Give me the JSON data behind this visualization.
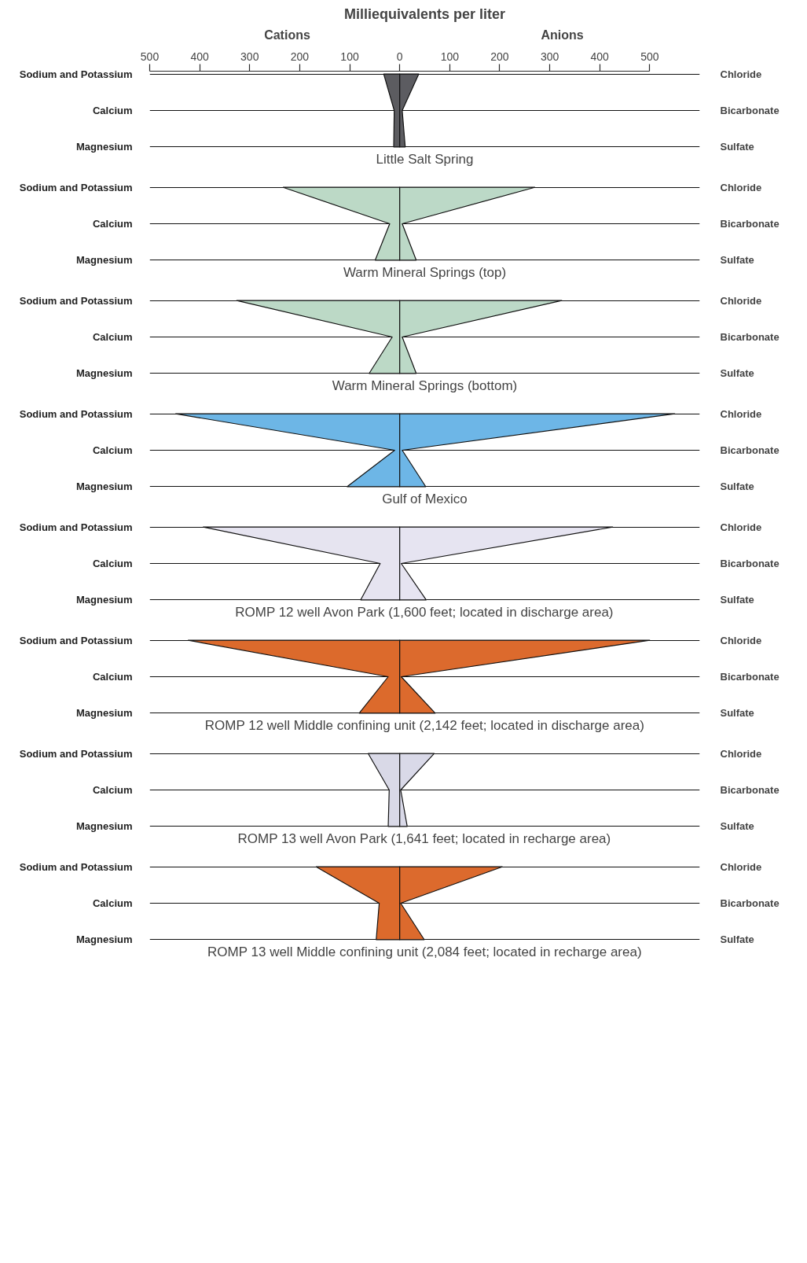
{
  "chart_data": [
    {
      "type": "area",
      "orientation": "horizontal",
      "title": "Milliequivalents per liter",
      "xlabel": "Little Salt Spring",
      "xlim": [
        -500,
        600
      ],
      "xticks": [
        {
          "value": -500,
          "label": "500"
        },
        {
          "value": -400,
          "label": "400"
        },
        {
          "value": -300,
          "label": "300"
        },
        {
          "value": -200,
          "label": "200"
        },
        {
          "value": -100,
          "label": "100"
        },
        0,
        100,
        200,
        300,
        400,
        500
      ],
      "grid": "y",
      "categories": [
        "Sodium and Potassium",
        "Calcium",
        "Magnesium"
      ],
      "y2_categories": [
        "Chloride",
        "Bicarbonate",
        "Sulfate"
      ],
      "annotations": [
        "Cations",
        "Anions"
      ],
      "series": [
        {
          "color": "#5c5c60",
          "values": [
            -32,
            -11,
            -12
          ]
        },
        {
          "color": "#5c5c61",
          "values": [
            38,
            5,
            11
          ]
        }
      ]
    },
    {
      "type": "area",
      "orientation": "horizontal",
      "xlabel": "Warm Mineral Springs (top)",
      "xlim": [
        -500,
        600
      ],
      "tick_labels": "y",
      "grid": "y",
      "categories": [
        "Sodium and Potassium",
        "Calcium",
        "Magnesium"
      ],
      "y2_categories": [
        "Chloride",
        "Bicarbonate",
        "Sulfate"
      ],
      "series": [
        {
          "color": "#bcd9c6",
          "values": [
            -233,
            -20,
            -49
          ]
        },
        {
          "color": "#bcd9c7",
          "values": [
            270,
            5,
            33
          ]
        }
      ]
    },
    {
      "type": "area",
      "orientation": "horizontal",
      "xlabel": "Warm Mineral Springs (bottom)",
      "xlim": [
        -500,
        600
      ],
      "tick_labels": "y",
      "grid": "y",
      "categories": [
        "Sodium and Potassium",
        "Calcium",
        "Magnesium"
      ],
      "y2_categories": [
        "Chloride",
        "Bicarbonate",
        "Sulfate"
      ],
      "series": [
        {
          "color": "#bcd9c6",
          "values": [
            -326,
            -15,
            -61
          ]
        },
        {
          "color": "#bcd9c7",
          "values": [
            324,
            5,
            33
          ]
        }
      ]
    },
    {
      "type": "area",
      "orientation": "horizontal",
      "xlabel": "Gulf of Mexico",
      "xlim": [
        -500,
        600
      ],
      "tick_labels": "y",
      "grid": "y",
      "categories": [
        "Sodium and Potassium",
        "Calcium",
        "Magnesium"
      ],
      "y2_categories": [
        "Chloride",
        "Bicarbonate",
        "Sulfate"
      ],
      "series": [
        {
          "color": "#6db6e6",
          "values": [
            -448,
            -10,
            -105
          ]
        },
        {
          "color": "#6db6e7",
          "values": [
            550,
            5,
            52
          ]
        }
      ]
    },
    {
      "type": "area",
      "orientation": "horizontal",
      "xlabel": "ROMP 12 well Avon Park (1,600 feet; located in discharge area)",
      "xlim": [
        -500,
        600
      ],
      "tick_labels": "y",
      "grid": "y",
      "categories": [
        "Sodium and Potassium",
        "Calcium",
        "Magnesium"
      ],
      "y2_categories": [
        "Chloride",
        "Bicarbonate",
        "Sulfate"
      ],
      "series": [
        {
          "color": "#e6e4f0",
          "values": [
            -393,
            -39,
            -78
          ]
        },
        {
          "color": "#e6e4f1",
          "values": [
            426,
            3,
            53
          ]
        }
      ]
    },
    {
      "type": "area",
      "orientation": "horizontal",
      "xlabel": "ROMP 12 well Middle confining unit (2,142 feet; located in discharge area)",
      "xlim": [
        -500,
        600
      ],
      "tick_labels": "y",
      "grid": "y",
      "categories": [
        "Sodium and Potassium",
        "Calcium",
        "Magnesium"
      ],
      "y2_categories": [
        "Chloride",
        "Bicarbonate",
        "Sulfate"
      ],
      "series": [
        {
          "color": "#dc6a2c",
          "values": [
            -423,
            -23,
            -81
          ]
        },
        {
          "color": "#dc6a2d",
          "values": [
            500,
            3,
            71
          ]
        }
      ]
    },
    {
      "type": "area",
      "orientation": "horizontal",
      "xlabel": "ROMP 13 well Avon Park (1,641 feet; located in recharge area)",
      "xlim": [
        -500,
        600
      ],
      "tick_labels": "y",
      "grid": "y",
      "categories": [
        "Sodium and Potassium",
        "Calcium",
        "Magnesium"
      ],
      "y2_categories": [
        "Chloride",
        "Bicarbonate",
        "Sulfate"
      ],
      "series": [
        {
          "color": "#d9d9e7",
          "values": [
            -63,
            -21,
            -23
          ]
        },
        {
          "color": "#d9d9e8",
          "values": [
            69,
            2,
            15
          ]
        }
      ]
    },
    {
      "type": "area",
      "orientation": "horizontal",
      "xlabel": "ROMP 13 well Middle confining unit (2,084 feet; located in recharge area)",
      "xlim": [
        -500,
        600
      ],
      "tick_labels": "y",
      "grid": "y",
      "categories": [
        "Sodium and Potassium",
        "Calcium",
        "Magnesium"
      ],
      "y2_categories": [
        "Chloride",
        "Bicarbonate",
        "Sulfate"
      ],
      "series": [
        {
          "color": "#dc6a2c",
          "values": [
            -167,
            -41,
            -47
          ]
        },
        {
          "color": "#dc6a2d",
          "values": [
            205,
            2,
            49
          ]
        }
      ]
    }
  ]
}
